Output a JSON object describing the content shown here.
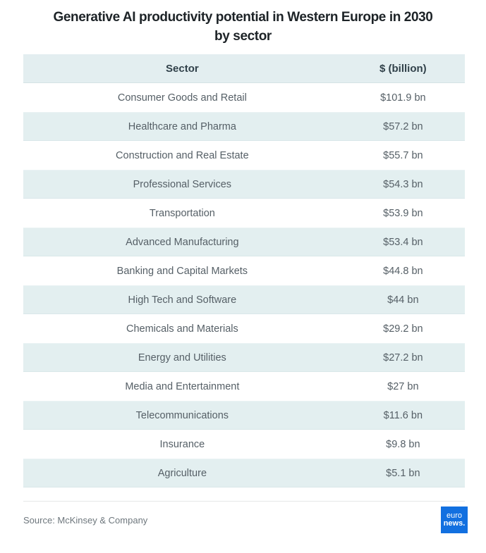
{
  "title": {
    "line1": "Generative AI productivity potential in Western Europe in 2030",
    "line2": "by sector"
  },
  "table": {
    "columns": {
      "sector": "Sector",
      "value": "$ (billion)"
    },
    "rows": [
      {
        "sector": "Consumer Goods and Retail",
        "value": "$101.9 bn"
      },
      {
        "sector": "Healthcare and Pharma",
        "value": "$57.2 bn"
      },
      {
        "sector": "Construction and Real Estate",
        "value": "$55.7 bn"
      },
      {
        "sector": "Professional Services",
        "value": "$54.3 bn"
      },
      {
        "sector": "Transportation",
        "value": "$53.9 bn"
      },
      {
        "sector": "Advanced Manufacturing",
        "value": "$53.4 bn"
      },
      {
        "sector": "Banking and Capital Markets",
        "value": "$44.8 bn"
      },
      {
        "sector": "High Tech and Software",
        "value": "$44 bn"
      },
      {
        "sector": "Chemicals and Materials",
        "value": "$29.2 bn"
      },
      {
        "sector": "Energy and Utilities",
        "value": "$27.2 bn"
      },
      {
        "sector": "Media and Entertainment",
        "value": "$27 bn"
      },
      {
        "sector": "Telecommunications",
        "value": "$11.6 bn"
      },
      {
        "sector": "Insurance",
        "value": "$9.8 bn"
      },
      {
        "sector": "Agriculture",
        "value": "$5.1 bn"
      }
    ]
  },
  "footer": {
    "source": "Source: McKinsey & Company",
    "logo": {
      "line1": "euro",
      "line2": "news."
    }
  },
  "colors": {
    "row_shaded_bg": "#e3eff0",
    "header_bg": "#e3eef0",
    "title_text": "#1d2327",
    "row_text": "#555f66",
    "logo_blue": "#1270e0"
  },
  "chart_data": {
    "type": "table",
    "title": "Generative AI productivity potential in Western Europe in 2030 by sector",
    "columns": [
      "Sector",
      "$ (billion)"
    ],
    "categories": [
      "Consumer Goods and Retail",
      "Healthcare and Pharma",
      "Construction and Real Estate",
      "Professional Services",
      "Transportation",
      "Advanced Manufacturing",
      "Banking and Capital Markets",
      "High Tech and Software",
      "Chemicals and Materials",
      "Energy and Utilities",
      "Media and Entertainment",
      "Telecommunications",
      "Insurance",
      "Agriculture"
    ],
    "values": [
      101.9,
      57.2,
      55.7,
      54.3,
      53.9,
      53.4,
      44.8,
      44,
      29.2,
      27.2,
      27,
      11.6,
      9.8,
      5.1
    ],
    "value_labels": [
      "$101.9 bn",
      "$57.2 bn",
      "$55.7 bn",
      "$54.3 bn",
      "$53.9 bn",
      "$53.4 bn",
      "$44.8 bn",
      "$44 bn",
      "$29.2 bn",
      "$27.2 bn",
      "$27 bn",
      "$11.6 bn",
      "$9.8 bn",
      "$5.1 bn"
    ],
    "source": "McKinsey & Company",
    "unit": "$ billion"
  }
}
